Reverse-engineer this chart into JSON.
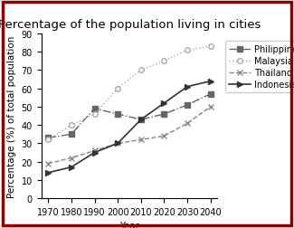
{
  "title": "Percentage of the population living in cities",
  "xlabel": "Year",
  "ylabel": "Percentage (%) of total population",
  "years": [
    1970,
    1980,
    1990,
    2000,
    2010,
    2020,
    2030,
    2040
  ],
  "series": {
    "Philippines": {
      "values": [
        33,
        35,
        49,
        46,
        43,
        46,
        51,
        57
      ],
      "linestyle": "-.",
      "marker": "s",
      "color": "#666666",
      "linewidth": 1.0,
      "markersize": 4
    },
    "Malaysia": {
      "values": [
        32,
        40,
        46,
        60,
        70,
        75,
        81,
        83
      ],
      "linestyle": ":",
      "marker": "o",
      "color": "#aaaaaa",
      "linewidth": 1.0,
      "markersize": 4
    },
    "Thailand": {
      "values": [
        19,
        22,
        26,
        30,
        32,
        34,
        41,
        50
      ],
      "linestyle": "--",
      "marker": "x",
      "color": "#888888",
      "linewidth": 1.0,
      "markersize": 4
    },
    "Indonesia": {
      "values": [
        14,
        17,
        25,
        30,
        43,
        52,
        61,
        64
      ],
      "linestyle": "-",
      "marker": ">",
      "color": "#333333",
      "linewidth": 1.2,
      "markersize": 4
    }
  },
  "ylim": [
    0,
    90
  ],
  "yticks": [
    0,
    10,
    20,
    30,
    40,
    50,
    60,
    70,
    80,
    90
  ],
  "background_color": "#ffffff",
  "border_color": "#8B0000",
  "title_fontsize": 9.5,
  "label_fontsize": 7.5,
  "tick_fontsize": 7,
  "legend_fontsize": 7
}
